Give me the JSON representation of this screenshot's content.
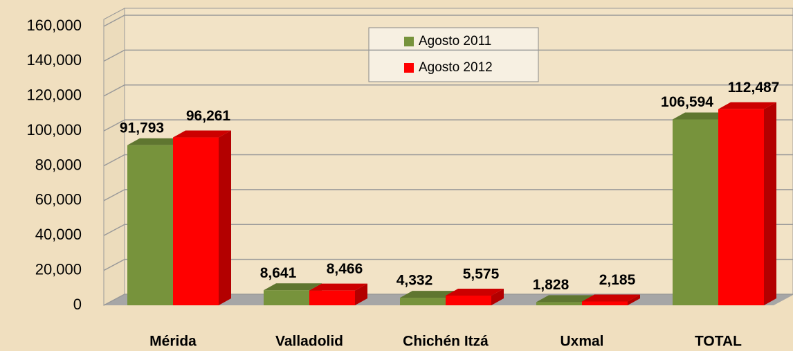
{
  "chart_data": {
    "type": "bar3d",
    "categories": [
      "Mérida",
      "Valladolid",
      "Chichén Itzá",
      "Uxmal",
      "TOTAL"
    ],
    "series": [
      {
        "name": "Agosto 2011",
        "color": "#77933c",
        "values": [
          91793,
          8641,
          4332,
          1828,
          106594
        ],
        "value_labels": [
          "91,793",
          "8,641",
          "4,332",
          "1,828",
          "106,594"
        ]
      },
      {
        "name": "Agosto 2012",
        "color": "#ff0000",
        "values": [
          96261,
          8466,
          5575,
          2185,
          112487
        ],
        "value_labels": [
          "96,261",
          "8,466",
          "5,575",
          "2,185",
          "112,487"
        ]
      }
    ],
    "ylim": [
      0,
      160000
    ],
    "yticks": [
      0,
      {
        "value": 20000,
        "label": "20,000"
      },
      {
        "value": 40000,
        "label": "40,000"
      },
      {
        "value": 60000,
        "label": "60,000"
      },
      {
        "value": 80000,
        "label": "80,000"
      },
      {
        "value": 100000,
        "label": "100,000"
      },
      {
        "value": 120000,
        "label": "120,000"
      },
      {
        "value": 140000,
        "label": "140,000"
      },
      {
        "value": 160000,
        "label": "160,000"
      }
    ],
    "grid": true,
    "legend": "top"
  }
}
